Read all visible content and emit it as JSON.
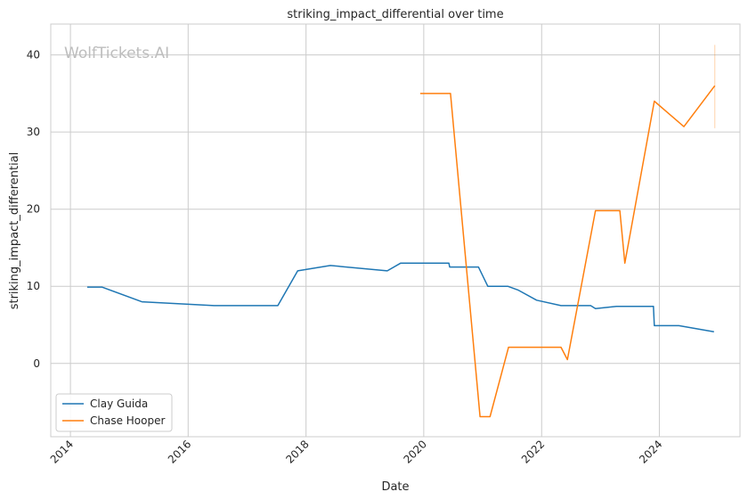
{
  "chart_data": {
    "type": "line",
    "title": "striking_impact_differential over time",
    "xlabel": "Date",
    "ylabel": "striking_impact_differential",
    "watermark": "WolfTickets.AI",
    "x_ticks": [
      "2014",
      "2016",
      "2018",
      "2020",
      "2022",
      "2024"
    ],
    "y_ticks": [
      "0",
      "10",
      "20",
      "30",
      "40"
    ],
    "xlim": [
      "2013-09-01",
      "2025-05-15"
    ],
    "ylim": [
      -9.5,
      44
    ],
    "grid": true,
    "legend_position": "lower-left",
    "series": [
      {
        "name": "Clay Guida",
        "color": "#1f77b4",
        "points": [
          [
            "2014-04-15",
            9.9
          ],
          [
            "2014-07-15",
            9.9
          ],
          [
            "2015-03-20",
            8.0
          ],
          [
            "2016-06-10",
            7.5
          ],
          [
            "2017-07-10",
            7.5
          ],
          [
            "2017-11-10",
            12.0
          ],
          [
            "2018-06-01",
            12.7
          ],
          [
            "2019-05-20",
            12.0
          ],
          [
            "2019-08-10",
            13.0
          ],
          [
            "2020-06-05",
            13.0
          ],
          [
            "2020-06-10",
            12.5
          ],
          [
            "2020-12-05",
            12.5
          ],
          [
            "2021-02-01",
            10.0
          ],
          [
            "2021-06-05",
            10.0
          ],
          [
            "2021-08-10",
            9.5
          ],
          [
            "2021-12-01",
            8.2
          ],
          [
            "2022-05-01",
            7.5
          ],
          [
            "2022-11-01",
            7.5
          ],
          [
            "2022-12-01",
            7.1
          ],
          [
            "2023-04-10",
            7.4
          ],
          [
            "2023-11-25",
            7.4
          ],
          [
            "2023-12-01",
            4.9
          ],
          [
            "2024-05-01",
            4.9
          ],
          [
            "2024-12-05",
            4.1
          ]
        ]
      },
      {
        "name": "Chase Hooper",
        "color": "#ff7f0e",
        "points": [
          [
            "2019-12-10",
            35.0
          ],
          [
            "2020-06-15",
            35.0
          ],
          [
            "2020-12-15",
            -6.9
          ],
          [
            "2021-02-15",
            -6.9
          ],
          [
            "2021-06-10",
            2.1
          ],
          [
            "2022-05-01",
            2.1
          ],
          [
            "2022-06-10",
            0.5
          ],
          [
            "2022-12-01",
            19.8
          ],
          [
            "2023-05-01",
            19.8
          ],
          [
            "2023-06-01",
            13.0
          ],
          [
            "2023-12-01",
            34.0
          ],
          [
            "2024-06-01",
            30.7
          ],
          [
            "2024-12-10",
            36.0
          ]
        ],
        "errorbar": {
          "x": "2024-12-10",
          "low": 30.5,
          "high": 41.3
        }
      }
    ]
  }
}
